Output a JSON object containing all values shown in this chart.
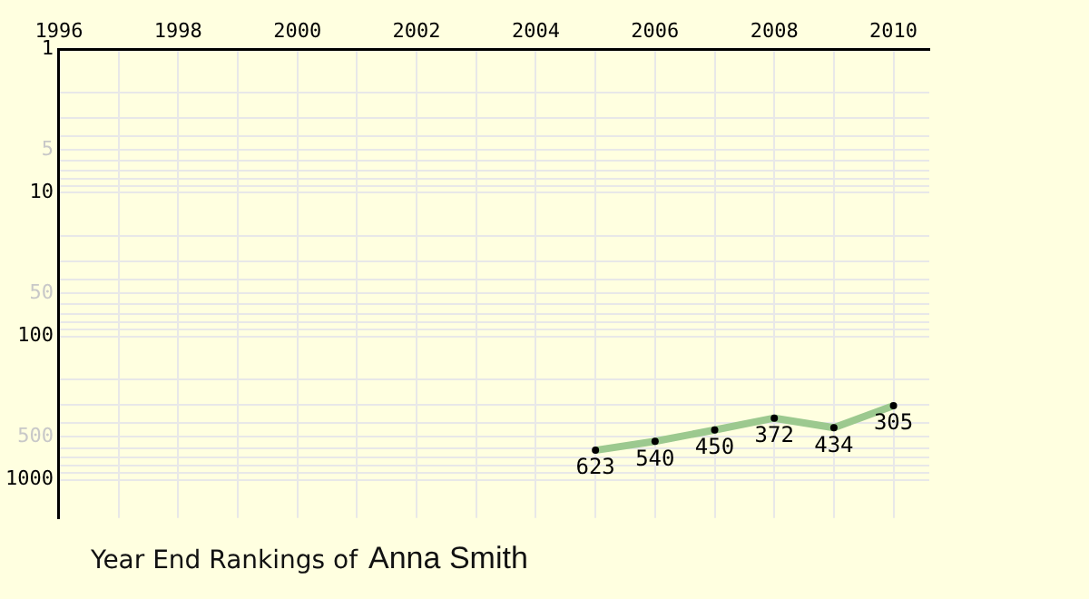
{
  "chart_data": {
    "type": "line",
    "title": "Year End Rankings of",
    "subtitle": "Anna Smith",
    "x": [
      2005,
      2006,
      2007,
      2008,
      2009,
      2010
    ],
    "series": [
      {
        "color": "#9cc98f",
        "values": [
          623,
          540,
          450,
          372,
          434,
          305
        ]
      }
    ],
    "xlim": [
      1996,
      2010.6
    ],
    "xticks": [
      1996,
      {
        "value": 1997,
        "label": null
      },
      1998,
      {
        "value": 1999,
        "label": null
      },
      2000,
      {
        "value": 2001,
        "label": null
      },
      2002,
      {
        "value": 2003,
        "label": null
      },
      2004,
      {
        "value": 2005,
        "label": null
      },
      2006,
      {
        "value": 2007,
        "label": null
      },
      2008,
      {
        "value": 2009,
        "label": null
      },
      2010
    ],
    "ylim": [
      1850,
      1
    ],
    "log": "y",
    "yticks": [
      1,
      {
        "value": 2,
        "label": null
      },
      {
        "value": 3,
        "label": null
      },
      {
        "value": 4,
        "label": null
      },
      5,
      {
        "value": 6,
        "label": null
      },
      {
        "value": 7,
        "label": null
      },
      {
        "value": 8,
        "label": null
      },
      {
        "value": 9,
        "label": null
      },
      10,
      {
        "value": 20,
        "label": null
      },
      {
        "value": 30,
        "label": null
      },
      {
        "value": 40,
        "label": null
      },
      50,
      {
        "value": 60,
        "label": null
      },
      {
        "value": 70,
        "label": null
      },
      {
        "value": 80,
        "label": null
      },
      {
        "value": 90,
        "label": null
      },
      100,
      {
        "value": 200,
        "label": null
      },
      {
        "value": 300,
        "label": null
      },
      {
        "value": 400,
        "label": null
      },
      500,
      {
        "value": 600,
        "label": null
      },
      {
        "value": 700,
        "label": null
      },
      {
        "value": 800,
        "label": null
      },
      {
        "value": 900,
        "label": null
      },
      1000
    ],
    "grid": true,
    "marker": "circle",
    "data_labels": true
  }
}
